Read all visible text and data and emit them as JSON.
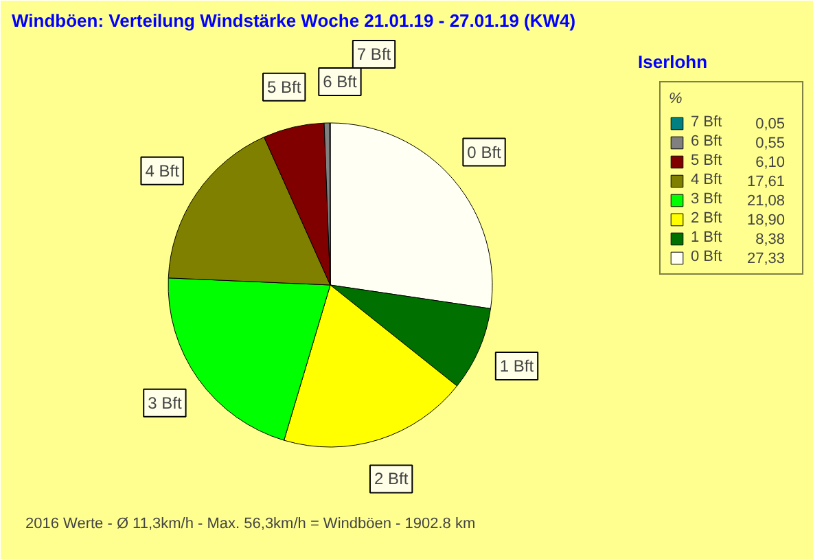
{
  "chart_data": {
    "type": "pie",
    "title": "Windböen: Verteilung Windstärke  Woche 21.01.19 - 27.01.19 (KW4)",
    "subtitle": "Iserlohn",
    "legend_title": "%",
    "legend": "top right",
    "categories": [
      "0 Bft",
      "1 Bft",
      "2 Bft",
      "3 Bft",
      "4 Bft",
      "5 Bft",
      "6 Bft",
      "7 Bft"
    ],
    "values": [
      27.33,
      8.38,
      18.9,
      21.08,
      17.61,
      6.1,
      0.55,
      0.05
    ],
    "value_labels": [
      "27,33",
      "8,38",
      "18,90",
      "21,08",
      "17,61",
      "6,10",
      "0,55",
      "0,05"
    ],
    "colors": [
      "#fffff4",
      "#007000",
      "#ffff00",
      "#00ff00",
      "#808000",
      "#800000",
      "#808080",
      "#008080"
    ],
    "annotations": [
      "2016 Werte   -   Ø 11,3km/h  -  Max. 56,3km/h = Windböen   -   1902.8 km"
    ]
  }
}
